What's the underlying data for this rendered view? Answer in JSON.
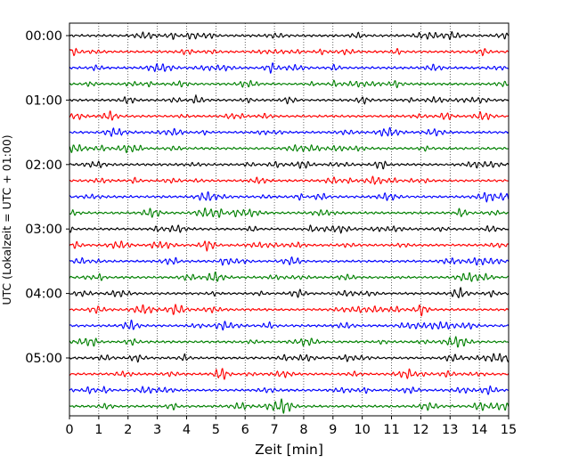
{
  "chart_data": {
    "type": "line",
    "subtype": "seismogram-dayplot",
    "title": "",
    "xlabel": "Zeit  [min]",
    "ylabel": "UTC (Lokalzeit = UTC + 01:00)",
    "xlim": [
      0,
      15
    ],
    "x_ticks": [
      0,
      1,
      2,
      3,
      4,
      5,
      6,
      7,
      8,
      9,
      10,
      11,
      12,
      13,
      14,
      15
    ],
    "x_tick_labels": [
      "0",
      "1",
      "2",
      "3",
      "4",
      "5",
      "6",
      "7",
      "8",
      "9",
      "10",
      "11",
      "12",
      "13",
      "14",
      "15"
    ],
    "y_tick_labels": [
      "00:00",
      "01:00",
      "02:00",
      "03:00",
      "04:00",
      "05:00"
    ],
    "traces_per_hour": 4,
    "minutes_per_trace": 15,
    "hours": 6,
    "trace_colors": [
      "#000000",
      "#ff0000",
      "#0000ff",
      "#008000"
    ],
    "vertical_grid": "dotted at every minute",
    "legend": "none"
  }
}
